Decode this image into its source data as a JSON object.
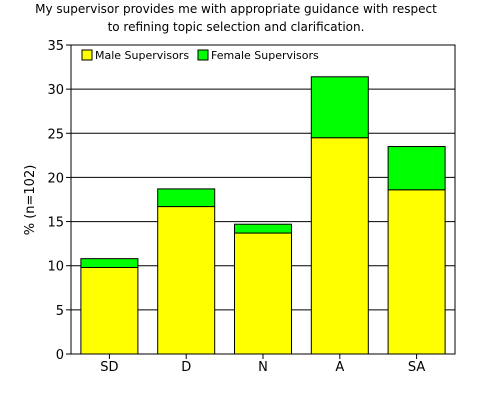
{
  "chart_data": {
    "type": "bar",
    "stacked": true,
    "title_lines": [
      "My supervisor provides me with appropriate guidance with respect",
      "to refining topic selection and clarification."
    ],
    "xlabel": "",
    "ylabel": "% (n=102)",
    "categories": [
      "SD",
      "D",
      "N",
      "A",
      "SA"
    ],
    "series": [
      {
        "name": "Male Supervisors",
        "color": "#ffff00",
        "values": [
          9.8,
          16.7,
          13.7,
          24.5,
          18.6
        ]
      },
      {
        "name": "Female Supervisors",
        "color": "#00ff00",
        "values": [
          1.0,
          2.0,
          1.0,
          6.9,
          4.9
        ]
      }
    ],
    "ylim": [
      0,
      35
    ],
    "yticks": [
      0,
      5,
      10,
      15,
      20,
      25,
      30,
      35
    ],
    "grid": true,
    "legend_position": "top-left"
  }
}
